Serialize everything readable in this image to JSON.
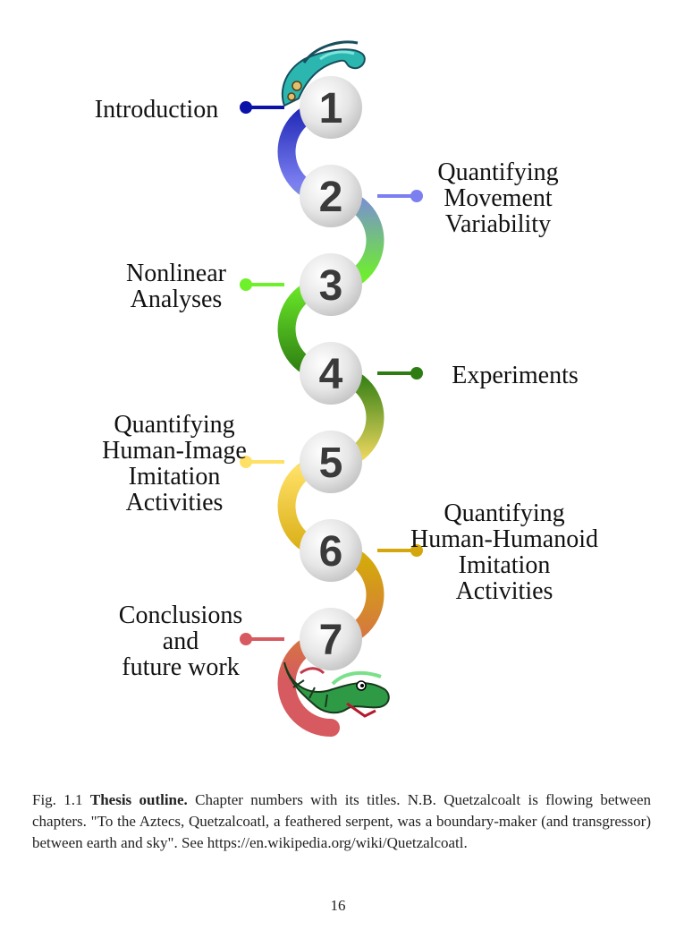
{
  "diagram": {
    "chapters": [
      {
        "number": "1",
        "lines": [
          "Introduction"
        ],
        "color": "#0a12a8"
      },
      {
        "number": "2",
        "lines": [
          "Quantifying",
          "Movement",
          "Variability"
        ],
        "color": "#7b7ff0"
      },
      {
        "number": "3",
        "lines": [
          "Nonlinear",
          "Analyses"
        ],
        "color": "#6ef02a"
      },
      {
        "number": "4",
        "lines": [
          "Experiments"
        ],
        "color": "#2e7d12"
      },
      {
        "number": "5",
        "lines": [
          "Quantifying",
          "Human-Image",
          "Imitation",
          "Activities"
        ],
        "color": "#ffe066"
      },
      {
        "number": "6",
        "lines": [
          "Quantifying",
          "Human-Humanoid",
          "Imitation",
          "Activities"
        ],
        "color": "#d4a80c"
      },
      {
        "number": "7",
        "lines": [
          "Conclusions",
          "and",
          "future  work"
        ],
        "color": "#d65a5f"
      }
    ]
  },
  "caption": {
    "prefix": "Fig. 1.1 ",
    "title": "Thesis outline.",
    "body": " Chapter numbers with its titles. N.B. Quetzalcoalt is flowing between chapters. \"To the Aztecs, Quetzalcoatl, a feathered serpent, was a boundary-maker (and transgressor) between earth and sky\". See https://en.wikipedia.org/wiki/Quetzalcoatl."
  },
  "page_number": "16"
}
